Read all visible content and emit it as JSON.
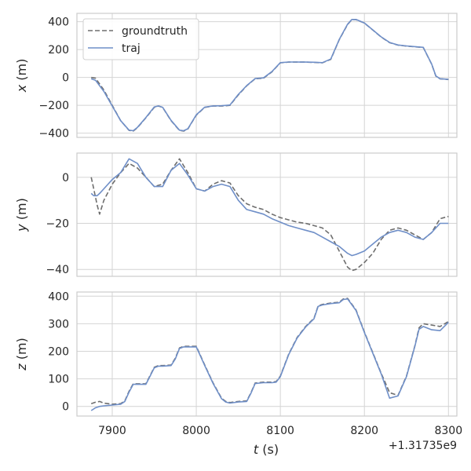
{
  "chart_data": {
    "type": "line",
    "x_offset_label": "+1.31735e9",
    "xlabel": "t (s)",
    "xlabel_var": "t",
    "xlabel_unit": " (s)",
    "xlim": [
      7858,
      8310
    ],
    "xticks": [
      7900,
      8000,
      8100,
      8200,
      8300
    ],
    "legend": {
      "placement": "top-left",
      "entries": [
        "groundtruth",
        "traj"
      ]
    },
    "series_styles": {
      "groundtruth": {
        "color": "#6e6e6e",
        "dash": "dashed"
      },
      "traj": {
        "color": "#6f8fc8",
        "dash": "solid"
      }
    },
    "grid": true,
    "panels": [
      {
        "ylabel_var": "x",
        "ylabel_unit": " (m)",
        "ylim": [
          -430,
          460
        ],
        "yticks": [
          400,
          200,
          0,
          -200,
          -400
        ],
        "series": [
          {
            "name": "groundtruth",
            "x": [
              7875,
              7880,
              7890,
              7900,
              7910,
              7920,
              7925,
              7930,
              7940,
              7950,
              7955,
              7960,
              7970,
              7980,
              7985,
              7990,
              8000,
              8010,
              8020,
              8030,
              8040,
              8050,
              8060,
              8070,
              8080,
              8090,
              8100,
              8110,
              8120,
              8130,
              8140,
              8150,
              8160,
              8170,
              8180,
              8185,
              8190,
              8200,
              8210,
              8220,
              8230,
              8240,
              8250,
              8260,
              8270,
              8280,
              8285,
              8290,
              8300
            ],
            "y": [
              0,
              -5,
              -90,
              -200,
              -310,
              -380,
              -385,
              -360,
              -290,
              -215,
              -205,
              -215,
              -310,
              -380,
              -385,
              -370,
              -270,
              -215,
              -205,
              -205,
              -200,
              -125,
              -60,
              -10,
              -5,
              40,
              105,
              110,
              110,
              110,
              108,
              105,
              130,
              270,
              380,
              415,
              415,
              390,
              340,
              290,
              250,
              232,
              225,
              220,
              215,
              95,
              10,
              -10,
              -15
            ]
          },
          {
            "name": "traj",
            "x": [
              7875,
              7880,
              7890,
              7900,
              7910,
              7920,
              7925,
              7930,
              7940,
              7950,
              7955,
              7960,
              7970,
              7980,
              7985,
              7990,
              8000,
              8010,
              8020,
              8030,
              8040,
              8050,
              8060,
              8070,
              8080,
              8090,
              8100,
              8110,
              8120,
              8130,
              8140,
              8150,
              8160,
              8170,
              8180,
              8185,
              8190,
              8200,
              8210,
              8220,
              8230,
              8240,
              8250,
              8260,
              8270,
              8280,
              8285,
              8290,
              8300
            ],
            "y": [
              -10,
              -20,
              -100,
              -205,
              -310,
              -378,
              -382,
              -358,
              -288,
              -212,
              -204,
              -214,
              -308,
              -378,
              -382,
              -368,
              -268,
              -213,
              -204,
              -203,
              -198,
              -122,
              -58,
              -8,
              -3,
              42,
              106,
              111,
              111,
              110,
              109,
              106,
              132,
              272,
              382,
              416,
              416,
              391,
              341,
              291,
              251,
              233,
              226,
              221,
              216,
              96,
              11,
              -9,
              -14
            ]
          }
        ]
      },
      {
        "ylabel_var": "y",
        "ylabel_unit": " (m)",
        "ylim": [
          -43,
          10.5
        ],
        "yticks": [
          0,
          -20,
          -40
        ],
        "series": [
          {
            "name": "groundtruth",
            "x": [
              7875,
              7878,
              7882,
              7885,
              7890,
              7900,
              7910,
              7920,
              7930,
              7940,
              7950,
              7960,
              7970,
              7980,
              7990,
              8000,
              8010,
              8020,
              8030,
              8040,
              8050,
              8060,
              8070,
              8080,
              8090,
              8100,
              8110,
              8120,
              8130,
              8140,
              8150,
              8160,
              8170,
              8180,
              8185,
              8190,
              8200,
              8210,
              8220,
              8230,
              8240,
              8250,
              8260,
              8270,
              8280,
              8290,
              8300
            ],
            "y": [
              0,
              -5,
              -12,
              -16,
              -10,
              -3,
              2,
              6,
              4,
              0,
              -4,
              -3,
              3,
              8,
              2,
              -5,
              -6,
              -3,
              -1.5,
              -2.5,
              -8,
              -11.5,
              -13,
              -14,
              -16,
              -17.5,
              -18.5,
              -19.5,
              -20,
              -21,
              -22,
              -25,
              -32,
              -39,
              -40.5,
              -40,
              -37,
              -33,
              -27,
              -23,
              -22,
              -23,
              -25,
              -27,
              -24,
              -18,
              -17
            ]
          },
          {
            "name": "traj",
            "x": [
              7875,
              7878,
              7882,
              7885,
              7890,
              7900,
              7910,
              7920,
              7930,
              7940,
              7950,
              7960,
              7970,
              7980,
              7990,
              8000,
              8010,
              8020,
              8030,
              8040,
              8050,
              8060,
              8070,
              8080,
              8090,
              8100,
              8110,
              8120,
              8130,
              8140,
              8150,
              8160,
              8170,
              8180,
              8185,
              8190,
              8200,
              8210,
              8220,
              8230,
              8240,
              8250,
              8260,
              8270,
              8280,
              8290,
              8300
            ],
            "y": [
              -7,
              -8,
              -8,
              -7,
              -5,
              -1,
              2,
              8,
              6,
              0,
              -4,
              -4,
              3,
              6,
              1,
              -5,
              -6,
              -4,
              -3,
              -4,
              -10,
              -14,
              -15,
              -16,
              -18,
              -19.5,
              -21,
              -22,
              -23,
              -24,
              -26,
              -28,
              -30,
              -33,
              -34,
              -33.5,
              -32,
              -29,
              -26,
              -24,
              -23,
              -24,
              -26,
              -27,
              -24,
              -20,
              -20
            ]
          }
        ]
      },
      {
        "ylabel_var": "z",
        "ylabel_unit": " (m)",
        "ylim": [
          -35,
          415
        ],
        "yticks": [
          400,
          300,
          200,
          100,
          0
        ],
        "series": [
          {
            "name": "groundtruth",
            "x": [
              7875,
              7880,
              7885,
              7890,
              7900,
              7910,
              7915,
              7920,
              7925,
              7930,
              7940,
              7945,
              7950,
              7955,
              7960,
              7970,
              7975,
              7980,
              7985,
              7990,
              8000,
              8010,
              8020,
              8030,
              8035,
              8040,
              8050,
              8060,
              8065,
              8070,
              8080,
              8090,
              8095,
              8100,
              8110,
              8120,
              8130,
              8140,
              8145,
              8150,
              8160,
              8170,
              8175,
              8180,
              8190,
              8200,
              8210,
              8220,
              8230,
              8240,
              8250,
              8260,
              8265,
              8270,
              8280,
              8290,
              8300
            ],
            "y": [
              10,
              15,
              18,
              12,
              8,
              10,
              20,
              55,
              82,
              82,
              82,
              112,
              142,
              148,
              148,
              150,
              175,
              212,
              218,
              218,
              218,
              150,
              85,
              30,
              18,
              14,
              18,
              20,
              50,
              85,
              88,
              88,
              90,
              110,
              190,
              250,
              290,
              320,
              365,
              370,
              375,
              378,
              390,
              392,
              350,
              270,
              195,
              120,
              50,
              40,
              110,
              220,
              285,
              300,
              295,
              290,
              308
            ]
          },
          {
            "name": "traj",
            "x": [
              7875,
              7880,
              7885,
              7890,
              7900,
              7910,
              7915,
              7920,
              7925,
              7930,
              7940,
              7945,
              7950,
              7955,
              7960,
              7970,
              7975,
              7980,
              7985,
              7990,
              8000,
              8010,
              8020,
              8030,
              8035,
              8040,
              8050,
              8060,
              8065,
              8070,
              8080,
              8090,
              8095,
              8100,
              8110,
              8120,
              8130,
              8140,
              8145,
              8150,
              8160,
              8170,
              8175,
              8180,
              8190,
              8200,
              8210,
              8220,
              8230,
              8240,
              8250,
              8260,
              8265,
              8270,
              8280,
              8290,
              8300
            ],
            "y": [
              -15,
              -5,
              0,
              2,
              5,
              8,
              18,
              52,
              80,
              80,
              80,
              110,
              140,
              146,
              146,
              148,
              172,
              210,
              216,
              216,
              216,
              148,
              83,
              28,
              16,
              12,
              16,
              18,
              48,
              83,
              86,
              86,
              88,
              108,
              188,
              248,
              288,
              318,
              363,
              368,
              373,
              376,
              388,
              390,
              348,
              268,
              193,
              118,
              30,
              38,
              108,
              218,
              280,
              290,
              278,
              275,
              305
            ]
          }
        ]
      }
    ]
  }
}
